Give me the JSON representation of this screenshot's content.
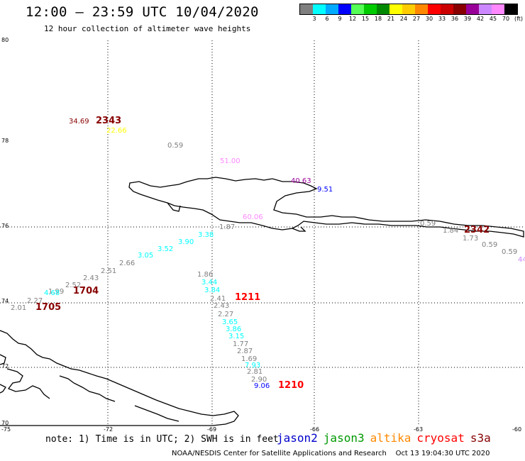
{
  "header": {
    "title": "12:00 – 23:59 UTC 10/04/2020",
    "subtitle": "12 hour collection of altimeter wave heights"
  },
  "legend": {
    "colors": [
      "#7f7f7f",
      "#00ffff",
      "#00aaff",
      "#0000ff",
      "#55ff55",
      "#00cc00",
      "#008800",
      "#ffff00",
      "#ffcc00",
      "#ff8800",
      "#ff0000",
      "#cc0000",
      "#880000",
      "#990099",
      "#cc88ff",
      "#ff88ff",
      "#000000"
    ],
    "labels": [
      "3",
      "6",
      "9",
      "12",
      "15",
      "18",
      "21",
      "24",
      "27",
      "30",
      "33",
      "36",
      "39",
      "42",
      "45",
      "70",
      "(ft)"
    ]
  },
  "map": {
    "y_ticks": [
      "80",
      "78",
      "76",
      "74",
      "72",
      "70"
    ],
    "x_ticks": [
      "-75",
      "-72",
      "-69",
      "-66",
      "-63",
      "-60"
    ],
    "land_color": "#000000",
    "grid": "dotted"
  },
  "observations": [
    {
      "text": "34.69",
      "color": "#880000"
    },
    {
      "text": "2343",
      "color": "#880000",
      "bold": true
    },
    {
      "text": "22.66",
      "color": "#ffff00"
    },
    {
      "text": "0.59",
      "color": "#7f7f7f"
    },
    {
      "text": "51.00",
      "color": "#ff88ff"
    },
    {
      "text": "40.63",
      "color": "#990099"
    },
    {
      "text": "9.51",
      "color": "#0000ff"
    },
    {
      "text": "60.06",
      "color": "#ff88ff"
    },
    {
      "text": "0.59",
      "color": "#7f7f7f"
    },
    {
      "text": "1.84",
      "color": "#7f7f7f"
    },
    {
      "text": "2342",
      "color": "#880000",
      "bold": true
    },
    {
      "text": "1.73",
      "color": "#7f7f7f"
    },
    {
      "text": "0.59",
      "color": "#7f7f7f"
    },
    {
      "text": "0.59",
      "color": "#7f7f7f"
    },
    {
      "text": "44",
      "color": "#cc88ff"
    },
    {
      "text": "3.38",
      "color": "#00ffff"
    },
    {
      "text": "1.87",
      "color": "#7f7f7f"
    },
    {
      "text": "3.90",
      "color": "#00ffff"
    },
    {
      "text": "3.52",
      "color": "#00ffff"
    },
    {
      "text": "3.05",
      "color": "#00ffff"
    },
    {
      "text": "2.66",
      "color": "#7f7f7f"
    },
    {
      "text": "2.51",
      "color": "#7f7f7f"
    },
    {
      "text": "2.43",
      "color": "#7f7f7f"
    },
    {
      "text": "2.52",
      "color": "#7f7f7f"
    },
    {
      "text": "1.99",
      "color": "#7f7f7f"
    },
    {
      "text": "1704",
      "color": "#880000",
      "bold": true
    },
    {
      "text": "4.68",
      "color": "#00ffff"
    },
    {
      "text": "2.27",
      "color": "#7f7f7f"
    },
    {
      "text": "2.01",
      "color": "#7f7f7f"
    },
    {
      "text": "1705",
      "color": "#880000",
      "bold": true
    },
    {
      "text": "1.86",
      "color": "#7f7f7f"
    },
    {
      "text": "3.44",
      "color": "#00ffff"
    },
    {
      "text": "3.84",
      "color": "#00ffff"
    },
    {
      "text": "2.41",
      "color": "#7f7f7f"
    },
    {
      "text": "1211",
      "color": "#ff0000",
      "bold": true
    },
    {
      "text": "2.43",
      "color": "#7f7f7f"
    },
    {
      "text": "2.27",
      "color": "#7f7f7f"
    },
    {
      "text": "3.65",
      "color": "#00ffff"
    },
    {
      "text": "3.86",
      "color": "#00ffff"
    },
    {
      "text": "3.15",
      "color": "#00ffff"
    },
    {
      "text": "1.77",
      "color": "#7f7f7f"
    },
    {
      "text": "2.87",
      "color": "#7f7f7f"
    },
    {
      "text": "1.69",
      "color": "#7f7f7f"
    },
    {
      "text": "7.93",
      "color": "#00ffff"
    },
    {
      "text": "2.81",
      "color": "#7f7f7f"
    },
    {
      "text": "2.90",
      "color": "#7f7f7f"
    },
    {
      "text": "9.06",
      "color": "#0000ff"
    },
    {
      "text": "1210",
      "color": "#ff0000",
      "bold": true
    }
  ],
  "footer": {
    "note": "note: 1) Time is in UTC; 2) SWH is in feet",
    "missions": [
      {
        "name": "jason2",
        "color": "#0000cc"
      },
      {
        "name": "jason3",
        "color": "#009900"
      },
      {
        "name": "altika",
        "color": "#ff8800"
      },
      {
        "name": "cryosat",
        "color": "#ff0000"
      },
      {
        "name": "s3a",
        "color": "#880000"
      }
    ],
    "credit": "NOAA/NESDIS Center for Satellite Applications and Research    Oct 13 19:04:30 UTC 2020"
  }
}
